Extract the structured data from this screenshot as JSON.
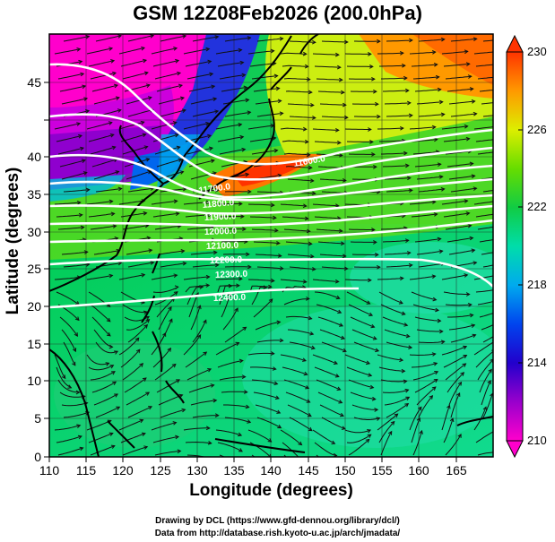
{
  "title": "GSM 12Z08Feb2026 (200.0hPa)",
  "xlabel": "Longitude (degrees)",
  "ylabel": "Latitude  (degrees)",
  "credit_line1": "Drawing by DCL (https://www.gfd-dennou.org/library/dcl/)",
  "credit_line2": "Data from http://database.rish.kyoto-u.ac.jp/arch/jmadata/",
  "x_ticks": [
    "110",
    "115",
    "120",
    "125",
    "130",
    "135",
    "140",
    "145",
    "150",
    "155",
    "160",
    "165"
  ],
  "y_ticks": [
    "0",
    "5",
    "10",
    "15",
    "20",
    "25",
    "30",
    "35",
    "40",
    "45"
  ],
  "colorbar_ticks": [
    "210",
    "214",
    "218",
    "222",
    "226",
    "230"
  ],
  "contour_labels": [
    "11600.0",
    "11700.0",
    "11800.0",
    "11900.0",
    "12000.0",
    "12100.0",
    "12200.0",
    "12300.0",
    "12400.0"
  ],
  "chart_data": {
    "type": "heatmap",
    "title": "GSM 12Z08Feb2026 (200.0hPa)",
    "xlabel": "Longitude (degrees)",
    "ylabel": "Latitude (degrees)",
    "xlim": [
      110,
      170
    ],
    "ylim": [
      0,
      50
    ],
    "color_range": [
      210,
      230
    ],
    "overlay": "streamlines of wind; white contours of geopotential height",
    "height_contours": [
      11600,
      11700,
      11800,
      11900,
      12000,
      12100,
      12200,
      12300,
      12400
    ]
  }
}
